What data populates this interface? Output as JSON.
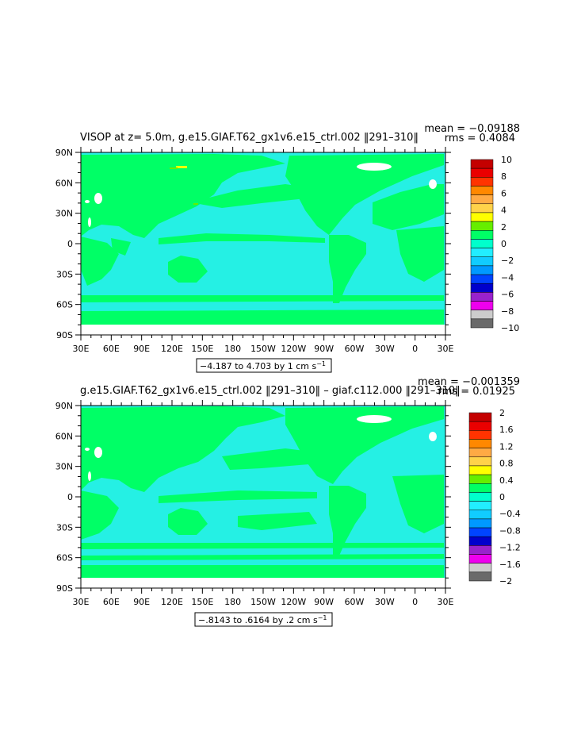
{
  "chart_data": [
    {
      "type": "heatmap",
      "title": "VISOP at z=    5.0m, g.e15.GIAF.T62_gx1v6.e15_ctrl.002 ‖291–310‖",
      "stats": {
        "mean": "mean = −0.09188",
        "rms": "rms = 0.4084"
      },
      "range_label": "−4.187 to 4.703 by 1 cm s",
      "range_sup": "−1",
      "x_ticks": [
        "30E",
        "60E",
        "90E",
        "120E",
        "150E",
        "180",
        "150W",
        "120W",
        "90W",
        "60W",
        "30W",
        "0",
        "30E"
      ],
      "y_ticks": [
        "90N",
        "60N",
        "30N",
        "0",
        "30S",
        "60S",
        "90S"
      ],
      "colorbar": {
        "labels": [
          "10",
          "8",
          "6",
          "4",
          "2",
          "0",
          "−2",
          "−4",
          "−6",
          "−8",
          "−10"
        ],
        "colors": [
          "#c40000",
          "#ea0000",
          "#ff3300",
          "#ff8800",
          "#ffaa44",
          "#ffd24a",
          "#ffff00",
          "#66ee00",
          "#00ff66",
          "#00ffcc",
          "#22eeff",
          "#11ccff",
          "#0099ff",
          "#0044ff",
          "#0000cc",
          "#9922cc",
          "#ee00ee",
          "#cccccc",
          "#6a6a6a"
        ]
      }
    },
    {
      "type": "heatmap",
      "title": "g.e15.GIAF.T62_gx1v6.e15_ctrl.002 ‖291–310‖ – giaf.c112.000 ‖291–310‖",
      "stats": {
        "mean": "mean = −0.001359",
        "rms": "rms = 0.01925"
      },
      "range_label": "−.8143 to .6164 by .2 cm s",
      "range_sup": "−1",
      "x_ticks": [
        "30E",
        "60E",
        "90E",
        "120E",
        "150E",
        "180",
        "150W",
        "120W",
        "90W",
        "60W",
        "30W",
        "0",
        "30E"
      ],
      "y_ticks": [
        "90N",
        "60N",
        "30N",
        "0",
        "30S",
        "60S",
        "90S"
      ],
      "colorbar": {
        "labels": [
          "2",
          "1.6",
          "1.2",
          "0.8",
          "0.4",
          "0",
          "−0.4",
          "−0.8",
          "−1.2",
          "−1.6",
          "−2"
        ],
        "colors": [
          "#c40000",
          "#ea0000",
          "#ff3300",
          "#ff8800",
          "#ffaa44",
          "#ffd24a",
          "#ffff00",
          "#66ee00",
          "#00ff66",
          "#00ffcc",
          "#22eeff",
          "#11ccff",
          "#0099ff",
          "#0044ff",
          "#0000cc",
          "#9922cc",
          "#ee00ee",
          "#cccccc",
          "#6a6a6a"
        ]
      }
    }
  ]
}
